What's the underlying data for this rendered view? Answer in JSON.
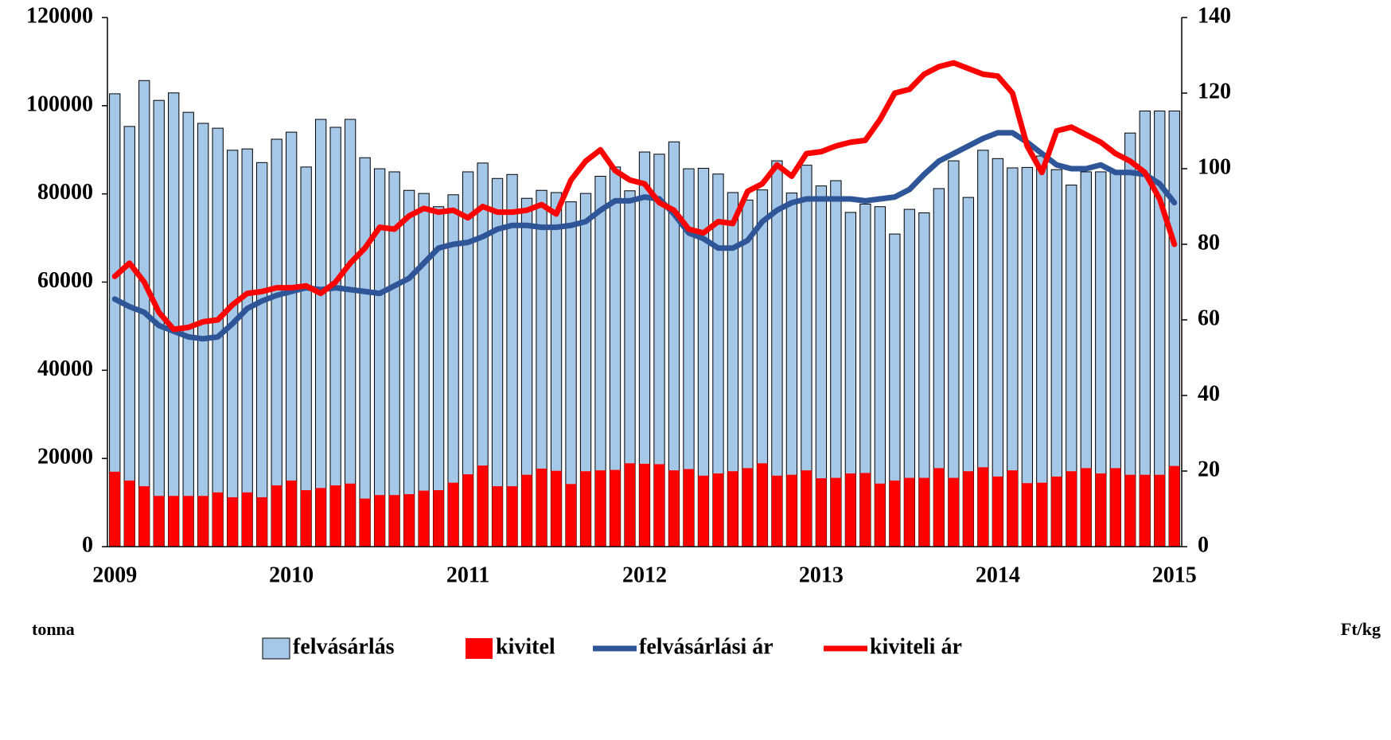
{
  "chart_data": {
    "type": "bar",
    "categories": [
      "2009",
      null,
      null,
      null,
      null,
      null,
      null,
      null,
      null,
      null,
      null,
      null,
      "2010",
      null,
      null,
      null,
      null,
      null,
      null,
      null,
      null,
      null,
      null,
      null,
      "2011",
      null,
      null,
      null,
      null,
      null,
      null,
      null,
      null,
      null,
      null,
      null,
      "2012",
      null,
      null,
      null,
      null,
      null,
      null,
      null,
      null,
      null,
      null,
      null,
      "2013",
      null,
      null,
      null,
      null,
      null,
      null,
      null,
      null,
      null,
      null,
      null,
      "2014",
      null,
      null,
      null,
      null,
      null,
      null,
      null,
      null,
      null,
      null,
      null,
      "2015"
    ],
    "series": [
      {
        "name": "felvásárlás",
        "type": "bar",
        "color": "#a6c8e8",
        "values": [
          102700,
          95300,
          105700,
          101200,
          102900,
          98500,
          96000,
          94900,
          89900,
          90200,
          87100,
          92400,
          94000,
          86100,
          96900,
          95100,
          96900,
          88200,
          85700,
          85000,
          80800,
          80100,
          77100,
          79800,
          85000,
          87000,
          83500,
          84400,
          79000,
          80800,
          80300,
          78200,
          80100,
          84000,
          86100,
          80700,
          89500,
          89000,
          91800,
          85700,
          85800,
          84500,
          80300,
          78600,
          80900,
          87500,
          80200,
          86500,
          81800,
          83000,
          75800,
          77700,
          77100,
          70900,
          76500,
          75700,
          81200,
          87500,
          79200,
          89900,
          88000,
          85900,
          86000,
          88600,
          85500,
          82000,
          85000,
          85000,
          85000,
          93800,
          98800,
          98800,
          98800
        ]
      },
      {
        "name": "kivitel",
        "type": "bar",
        "color": "#ff0000",
        "values": [
          17000,
          15000,
          13700,
          11500,
          11500,
          11500,
          11500,
          12300,
          11200,
          12300,
          11200,
          13900,
          15000,
          12800,
          13300,
          13900,
          14300,
          10900,
          11700,
          11700,
          11900,
          12700,
          12800,
          14500,
          16400,
          18400,
          13700,
          13700,
          16300,
          17700,
          17200,
          14200,
          17100,
          17300,
          17400,
          18900,
          18800,
          18700,
          17300,
          17600,
          16100,
          16600,
          17100,
          17800,
          18900,
          16100,
          16300,
          17300,
          15500,
          15600,
          16600,
          16700,
          14300,
          15000,
          15600,
          15600,
          17800,
          15600,
          17100,
          18000,
          15900,
          17300,
          14400,
          14500,
          15900,
          17100,
          17800,
          16600,
          17800,
          16300,
          16300,
          16300,
          18300
        ]
      },
      {
        "name": "felvásárlási ár",
        "type": "line",
        "axis": "y2",
        "color": "#2e5597",
        "values": [
          65.5,
          63.5,
          62,
          58.5,
          57,
          55.5,
          55,
          55.5,
          59,
          63,
          65,
          66.5,
          67.5,
          68.5,
          68,
          68.5,
          68,
          67.5,
          67,
          69,
          71,
          75,
          79,
          80,
          80.5,
          82,
          84,
          85,
          85,
          84.5,
          84.5,
          85,
          86,
          89,
          91.5,
          91.5,
          92.5,
          92,
          88,
          83,
          81.5,
          79,
          79,
          81,
          86,
          89,
          91,
          92,
          92,
          92,
          92,
          91.5,
          92,
          92.5,
          94.5,
          98.5,
          102,
          104,
          106,
          108,
          109.5,
          109.5,
          107,
          104,
          101,
          100,
          100,
          101,
          99,
          99,
          98.5,
          96,
          91
        ]
      },
      {
        "name": "kiviteli ár",
        "type": "line",
        "axis": "y2",
        "color": "#ff0000",
        "values": [
          71.5,
          75,
          70,
          62,
          57.5,
          58,
          59.5,
          60,
          64,
          67,
          67.5,
          68.5,
          68.5,
          69,
          67,
          70,
          75,
          79,
          84.5,
          84,
          87.5,
          89.5,
          88.5,
          89,
          87,
          90,
          88.5,
          88.5,
          89,
          90.5,
          88,
          97,
          102,
          105,
          99.5,
          97,
          96,
          91,
          89,
          84,
          83,
          86,
          85.5,
          94,
          96,
          101,
          98,
          104,
          104.5,
          106,
          107,
          107.5,
          113,
          120,
          121,
          125,
          127,
          128,
          126.5,
          125,
          124.5,
          120,
          106,
          99,
          110,
          111,
          109,
          107,
          104,
          102,
          99,
          92,
          80
        ]
      }
    ],
    "ylim": [
      0,
      120000
    ],
    "yticks": [
      0,
      20000,
      40000,
      60000,
      80000,
      100000,
      120000
    ],
    "y2lim": [
      0,
      140
    ],
    "y2ticks": [
      0,
      20,
      40,
      60,
      80,
      100,
      120,
      140
    ],
    "ylabel": "tonna",
    "y2label": "Ft/kg",
    "legend": "bottom"
  }
}
